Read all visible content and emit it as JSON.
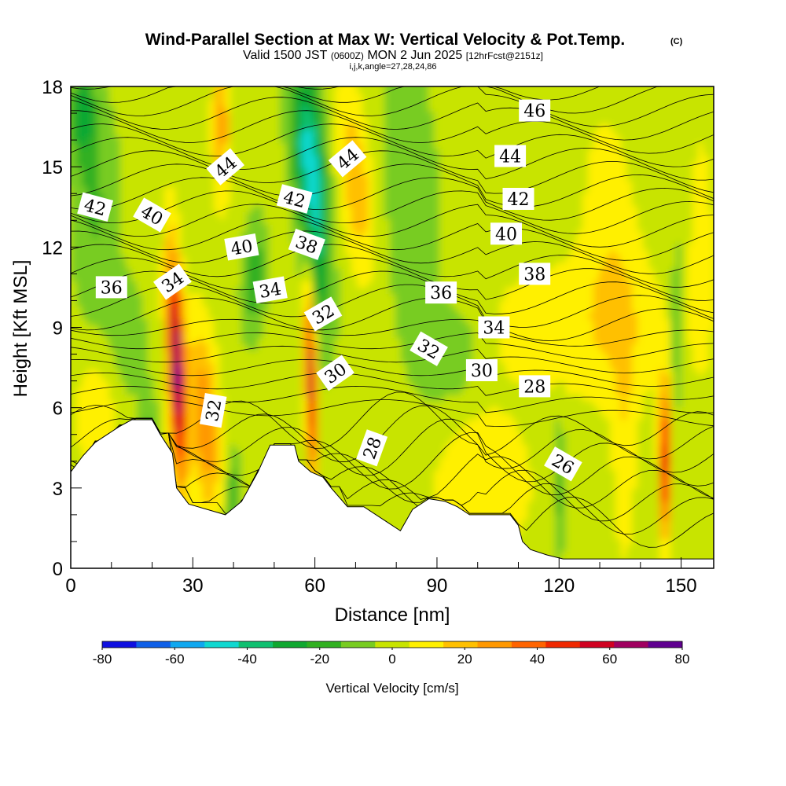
{
  "header": {
    "title_main": "Wind-Parallel Section at Max W: Vertical Velocity & Pot.Temp.",
    "title_suffix": "(C)",
    "subtitle_pre": "Valid 1500 JST",
    "subtitle_utc": "(0600Z)",
    "subtitle_date": "MON 2 Jun 2025",
    "subtitle_fcst": "[12hrFcst@2151z]",
    "subtitle_ijk": "i,j,k,angle=27,28,24,86"
  },
  "chart_data": {
    "type": "heatmap",
    "xlabel": "Distance [nm]",
    "ylabel": "Height [Kft MSL]",
    "xlim": [
      0,
      158
    ],
    "ylim": [
      0,
      18
    ],
    "x_ticks": [
      "0",
      "30",
      "60",
      "90",
      "120",
      "150"
    ],
    "y_ticks": [
      "0",
      "3",
      "6",
      "9",
      "12",
      "15",
      "18"
    ],
    "colorbar": {
      "title": "Vertical Velocity [cm/s]",
      "tick_labels": [
        "-80",
        "-60",
        "-40",
        "-20",
        "0",
        "20",
        "40",
        "60",
        "80"
      ],
      "levels": [
        -80,
        -70,
        -60,
        -50,
        -40,
        -30,
        -20,
        -10,
        0,
        10,
        20,
        30,
        40,
        50,
        60,
        70,
        80
      ],
      "colors": [
        "#1010e0",
        "#1060e8",
        "#10a8f0",
        "#10d8d0",
        "#10c070",
        "#10a830",
        "#30b020",
        "#78cc20",
        "#c8e400",
        "#fff000",
        "#ffc000",
        "#ff9800",
        "#ff6400",
        "#f02800",
        "#d00020",
        "#a00060",
        "#600090"
      ]
    },
    "terrain": [
      [
        0,
        3.6
      ],
      [
        3,
        4.2
      ],
      [
        6,
        4.7
      ],
      [
        9,
        5.0
      ],
      [
        12,
        5.3
      ],
      [
        15,
        5.55
      ],
      [
        20,
        5.55
      ],
      [
        22,
        5.0
      ],
      [
        25,
        4.3
      ],
      [
        26,
        3.0
      ],
      [
        29,
        2.4
      ],
      [
        38,
        2.0
      ],
      [
        42,
        2.5
      ],
      [
        46,
        3.6
      ],
      [
        49,
        4.6
      ],
      [
        55,
        4.6
      ],
      [
        56,
        4.0
      ],
      [
        59,
        3.6
      ],
      [
        62,
        3.4
      ],
      [
        64,
        3.0
      ],
      [
        68,
        2.3
      ],
      [
        72,
        2.3
      ],
      [
        78,
        1.7
      ],
      [
        81,
        1.4
      ],
      [
        84,
        2.2
      ],
      [
        88,
        2.6
      ],
      [
        92,
        2.5
      ],
      [
        95,
        2.3
      ],
      [
        98,
        2.0
      ],
      [
        108,
        2.0
      ],
      [
        110,
        1.6
      ],
      [
        111,
        1.0
      ],
      [
        113,
        0.7
      ],
      [
        117,
        0.5
      ],
      [
        121,
        0.35
      ],
      [
        158,
        0.35
      ]
    ],
    "theta_labels": [
      {
        "text": "46",
        "x": 114,
        "y": 17.1,
        "angle": 0
      },
      {
        "text": "44",
        "x": 108,
        "y": 15.4,
        "angle": 0
      },
      {
        "text": "42",
        "x": 110,
        "y": 13.8,
        "angle": 0
      },
      {
        "text": "40",
        "x": 107,
        "y": 12.5,
        "angle": 0
      },
      {
        "text": "38",
        "x": 114,
        "y": 11.0,
        "angle": 0
      },
      {
        "text": "36",
        "x": 91,
        "y": 10.3,
        "angle": 0
      },
      {
        "text": "34",
        "x": 104,
        "y": 9.0,
        "angle": 0
      },
      {
        "text": "32",
        "x": 88,
        "y": 8.2,
        "angle": 30
      },
      {
        "text": "30",
        "x": 101,
        "y": 7.4,
        "angle": 0
      },
      {
        "text": "28",
        "x": 114,
        "y": 6.8,
        "angle": 0
      },
      {
        "text": "26",
        "x": 121,
        "y": 3.9,
        "angle": 30
      },
      {
        "text": "42",
        "x": 6,
        "y": 13.5,
        "angle": 15
      },
      {
        "text": "40",
        "x": 20,
        "y": 13.2,
        "angle": 30
      },
      {
        "text": "36",
        "x": 10,
        "y": 10.5,
        "angle": 0
      },
      {
        "text": "34",
        "x": 25,
        "y": 10.7,
        "angle": -35
      },
      {
        "text": "44",
        "x": 38,
        "y": 15.0,
        "angle": -40
      },
      {
        "text": "40",
        "x": 42,
        "y": 12.0,
        "angle": -10
      },
      {
        "text": "34",
        "x": 49,
        "y": 10.4,
        "angle": -10
      },
      {
        "text": "42",
        "x": 55,
        "y": 13.8,
        "angle": 15
      },
      {
        "text": "38",
        "x": 58,
        "y": 12.1,
        "angle": 20
      },
      {
        "text": "32",
        "x": 62,
        "y": 9.5,
        "angle": -30
      },
      {
        "text": "30",
        "x": 65,
        "y": 7.3,
        "angle": -35
      },
      {
        "text": "44",
        "x": 68,
        "y": 15.3,
        "angle": -40
      },
      {
        "text": "32",
        "x": 35,
        "y": 5.9,
        "angle": -80
      },
      {
        "text": "28",
        "x": 74,
        "y": 4.5,
        "angle": -70
      }
    ]
  }
}
